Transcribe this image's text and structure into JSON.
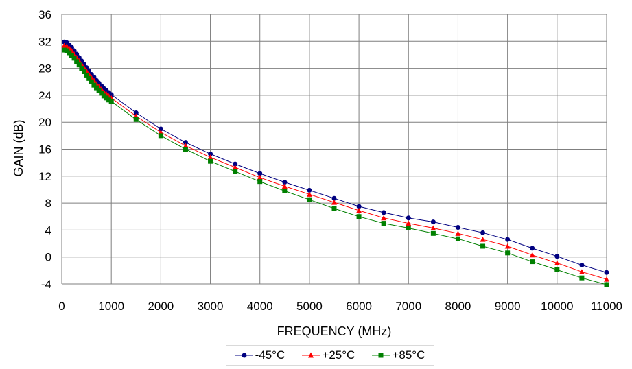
{
  "chart_data": {
    "type": "line",
    "xlabel": "FREQUENCY (MHz)",
    "ylabel": "GAIN (dB)",
    "xlim": [
      0,
      11000
    ],
    "ylim": [
      -4,
      36
    ],
    "xticks": [
      0,
      1000,
      2000,
      3000,
      4000,
      5000,
      6000,
      7000,
      8000,
      9000,
      10000,
      11000
    ],
    "yticks": [
      -4,
      0,
      4,
      8,
      12,
      16,
      20,
      24,
      28,
      32,
      36
    ],
    "grid": true,
    "legend_position": "bottom",
    "series": [
      {
        "name": "-45°C",
        "color": "#000080",
        "marker": "circle",
        "x": [
          50,
          100,
          150,
          200,
          250,
          300,
          350,
          400,
          450,
          500,
          550,
          600,
          650,
          700,
          750,
          800,
          850,
          900,
          950,
          1000,
          1500,
          2000,
          2500,
          3000,
          3500,
          4000,
          4500,
          5000,
          5500,
          6000,
          6500,
          7000,
          7500,
          8000,
          8500,
          9000,
          9500,
          10000,
          10500,
          11000
        ],
        "y": [
          31.9,
          31.8,
          31.5,
          31.1,
          30.6,
          30.1,
          29.6,
          29.1,
          28.6,
          28.1,
          27.6,
          27.1,
          26.7,
          26.2,
          25.8,
          25.4,
          25.0,
          24.7,
          24.4,
          24.1,
          21.4,
          19.0,
          17.0,
          15.3,
          13.8,
          12.4,
          11.1,
          9.9,
          8.7,
          7.5,
          6.6,
          5.8,
          5.2,
          4.4,
          3.6,
          2.6,
          1.3,
          0.1,
          -1.2,
          -2.3
        ]
      },
      {
        "name": "+25°C",
        "color": "#ff0000",
        "marker": "triangle",
        "x": [
          50,
          100,
          150,
          200,
          250,
          300,
          350,
          400,
          450,
          500,
          550,
          600,
          650,
          700,
          750,
          800,
          850,
          900,
          950,
          1000,
          1500,
          2000,
          2500,
          3000,
          3500,
          4000,
          4500,
          5000,
          5500,
          6000,
          6500,
          7000,
          7500,
          8000,
          8500,
          9000,
          9500,
          10000,
          10500,
          11000
        ],
        "y": [
          31.4,
          31.3,
          31.0,
          30.6,
          30.1,
          29.6,
          29.1,
          28.6,
          28.1,
          27.6,
          27.1,
          26.6,
          26.2,
          25.7,
          25.3,
          24.9,
          24.5,
          24.2,
          23.9,
          23.6,
          20.9,
          18.5,
          16.5,
          14.8,
          13.3,
          11.8,
          10.5,
          9.3,
          8.1,
          6.9,
          5.8,
          5.0,
          4.3,
          3.5,
          2.6,
          1.6,
          0.3,
          -0.9,
          -2.2,
          -3.3
        ]
      },
      {
        "name": "+85°C",
        "color": "#008000",
        "marker": "square",
        "x": [
          50,
          100,
          150,
          200,
          250,
          300,
          350,
          400,
          450,
          500,
          550,
          600,
          650,
          700,
          750,
          800,
          850,
          900,
          950,
          1000,
          1500,
          2000,
          2500,
          3000,
          3500,
          4000,
          4500,
          5000,
          5500,
          6000,
          6500,
          7000,
          7500,
          8000,
          8500,
          9000,
          9500,
          10000,
          10500,
          11000
        ],
        "y": [
          30.7,
          30.6,
          30.3,
          29.9,
          29.5,
          29.0,
          28.5,
          28.0,
          27.5,
          27.0,
          26.5,
          26.0,
          25.5,
          25.1,
          24.7,
          24.3,
          23.9,
          23.6,
          23.3,
          23.1,
          20.4,
          18.0,
          16.0,
          14.2,
          12.7,
          11.2,
          9.8,
          8.5,
          7.2,
          6.0,
          5.0,
          4.3,
          3.5,
          2.7,
          1.6,
          0.6,
          -0.7,
          -1.9,
          -3.1,
          -4.1
        ]
      }
    ]
  }
}
